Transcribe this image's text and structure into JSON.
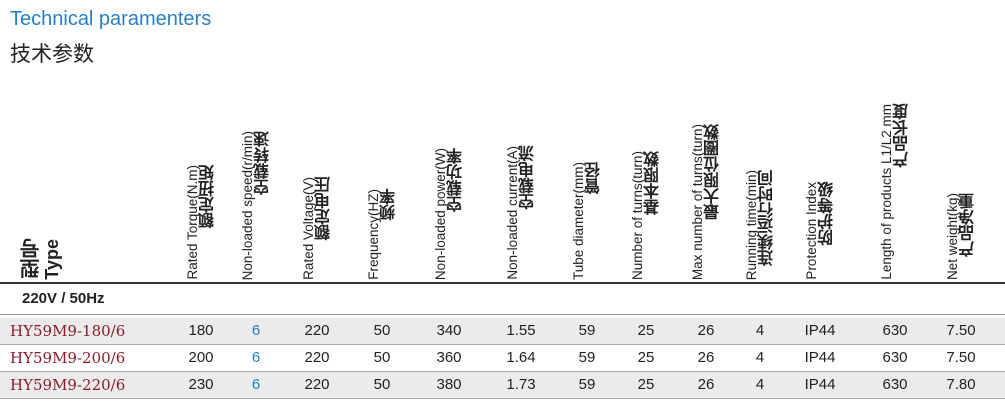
{
  "title_en": "Technical paramenters",
  "title_cn": "技术参数",
  "type_header": {
    "cn": "型号",
    "en": "Type"
  },
  "columns": [
    {
      "key": "torque",
      "en": "Rated Torque(N.m)",
      "cn": "额定扭矩"
    },
    {
      "key": "speed",
      "en": "Non-loaded speed(r/min)",
      "cn": "空载转速"
    },
    {
      "key": "voltage",
      "en": "Rated Voltage(V)",
      "cn": "额定电压"
    },
    {
      "key": "frequency",
      "en": "Frequency(HZ)",
      "cn": "频率"
    },
    {
      "key": "power",
      "en": "Non-loaded power(W)",
      "cn": "空载功率"
    },
    {
      "key": "current",
      "en": "Non-loaded current(A)",
      "cn": "空载电流"
    },
    {
      "key": "tube",
      "en": "Tube diameter(mm)",
      "cn": "管径"
    },
    {
      "key": "turns",
      "en": "Number of turns(turn)",
      "cn": "基本限数"
    },
    {
      "key": "max_turns",
      "en": "Max number of turns(turn)",
      "cn": "最大限位圈数"
    },
    {
      "key": "run_time",
      "en": "Running time(min)",
      "cn": "连续运行时间"
    },
    {
      "key": "protection",
      "en": "Protection Index",
      "cn": "防护等级"
    },
    {
      "key": "length",
      "en": "Length of products L1/L2 mm",
      "cn": "产品长度"
    },
    {
      "key": "weight",
      "en": "Net weight(kg)",
      "cn": "产品净重"
    }
  ],
  "group_label": "220V / 50Hz",
  "rows": [
    {
      "model": "HY59M9-180/6",
      "values": [
        "180",
        "6",
        "220",
        "50",
        "340",
        "1.55",
        "59",
        "25",
        "26",
        "4",
        "IP44",
        "630",
        "7.50"
      ]
    },
    {
      "model": "HY59M9-200/6",
      "values": [
        "200",
        "6",
        "220",
        "50",
        "360",
        "1.64",
        "59",
        "25",
        "26",
        "4",
        "IP44",
        "630",
        "7.50"
      ]
    },
    {
      "model": "HY59M9-220/6",
      "values": [
        "230",
        "6",
        "220",
        "50",
        "380",
        "1.73",
        "59",
        "25",
        "26",
        "4",
        "IP44",
        "630",
        "7.80"
      ]
    }
  ],
  "colors": {
    "title": "#2a7fc2",
    "model": "#8c1c2a",
    "speed": "#1c7fc6",
    "shade": "#ebebeb"
  }
}
